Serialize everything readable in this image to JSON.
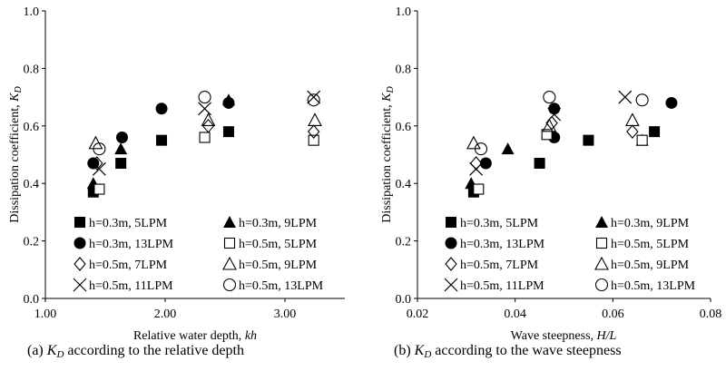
{
  "chart_data": [
    {
      "type": "scatter",
      "caption_prefix": "(a)",
      "caption_k": "K",
      "caption_sub": "D",
      "caption_rest": "according to the relative depth",
      "xlabel": "Relative water depth, ",
      "xlabel_italic": "kh",
      "ylabel": "Dissipation coefficient, ",
      "ylabel_k": "K",
      "ylabel_sub": "D",
      "xlim": [
        1.0,
        3.5
      ],
      "ylim": [
        0.0,
        1.0
      ],
      "xticks": [
        "1.00",
        "2.00",
        "3.00"
      ],
      "xtick_values": [
        1.0,
        2.0,
        3.0
      ],
      "yticks": [
        "0.0",
        "0.2",
        "0.4",
        "0.6",
        "0.8",
        "1.0"
      ],
      "ytick_values": [
        0.0,
        0.2,
        0.4,
        0.6,
        0.8,
        1.0
      ],
      "grid": false,
      "legend_position": "bottom-right",
      "series": [
        {
          "name": "h=0.3m, 5LPM",
          "marker": "square-filled",
          "points": [
            [
              1.4,
              0.37
            ],
            [
              1.63,
              0.47
            ],
            [
              1.97,
              0.55
            ],
            [
              2.53,
              0.58
            ]
          ]
        },
        {
          "name": "h=0.3m, 9LPM",
          "marker": "triangle-filled",
          "points": [
            [
              1.4,
              0.4
            ],
            [
              1.63,
              0.52
            ],
            [
              2.53,
              0.69
            ]
          ]
        },
        {
          "name": "h=0.3m, 13LPM",
          "marker": "circle-filled",
          "points": [
            [
              1.4,
              0.47
            ],
            [
              1.64,
              0.56
            ],
            [
              1.97,
              0.66
            ],
            [
              2.53,
              0.68
            ]
          ]
        },
        {
          "name": "h=0.5m, 5LPM",
          "marker": "square-open",
          "points": [
            [
              1.45,
              0.38
            ],
            [
              2.33,
              0.56
            ],
            [
              3.24,
              0.55
            ]
          ]
        },
        {
          "name": "h=0.5m, 7LPM",
          "marker": "diamond-open",
          "points": [
            [
              1.43,
              0.47
            ],
            [
              2.36,
              0.6
            ],
            [
              3.24,
              0.58
            ]
          ]
        },
        {
          "name": "h=0.5m, 9LPM",
          "marker": "triangle-open",
          "points": [
            [
              1.42,
              0.54
            ],
            [
              2.36,
              0.62
            ],
            [
              3.25,
              0.62
            ]
          ]
        },
        {
          "name": "h=0.5m, 11LPM",
          "marker": "x",
          "points": [
            [
              1.45,
              0.45
            ],
            [
              2.33,
              0.66
            ],
            [
              3.24,
              0.7
            ]
          ]
        },
        {
          "name": "h=0.5m, 13LPM",
          "marker": "circle-open",
          "points": [
            [
              1.45,
              0.52
            ],
            [
              2.33,
              0.7
            ],
            [
              3.24,
              0.69
            ]
          ]
        }
      ]
    },
    {
      "type": "scatter",
      "caption_prefix": "(b)",
      "caption_k": "K",
      "caption_sub": "D",
      "caption_rest": "according to the wave steepness",
      "xlabel": "Wave steepness, ",
      "xlabel_italic": "H/L",
      "ylabel": "Dissipation coefficient, ",
      "ylabel_k": "K",
      "ylabel_sub": "D",
      "xlim": [
        0.02,
        0.08
      ],
      "ylim": [
        0.0,
        1.0
      ],
      "xticks": [
        "0.02",
        "0.04",
        "0.06",
        "0.08"
      ],
      "xtick_values": [
        0.02,
        0.04,
        0.06,
        0.08
      ],
      "yticks": [
        "0.0",
        "0.2",
        "0.4",
        "0.6",
        "0.8",
        "1.0"
      ],
      "ytick_values": [
        0.0,
        0.2,
        0.4,
        0.6,
        0.8,
        1.0
      ],
      "grid": false,
      "legend_position": "bottom-right",
      "series": [
        {
          "name": "h=0.3m, 5LPM",
          "marker": "square-filled",
          "points": [
            [
              0.0315,
              0.37
            ],
            [
              0.045,
              0.47
            ],
            [
              0.055,
              0.55
            ],
            [
              0.0685,
              0.58
            ]
          ]
        },
        {
          "name": "h=0.3m, 9LPM",
          "marker": "triangle-filled",
          "points": [
            [
              0.031,
              0.4
            ],
            [
              0.0385,
              0.52
            ],
            [
              0.066,
              0.55
            ]
          ]
        },
        {
          "name": "h=0.3m, 13LPM",
          "marker": "circle-filled",
          "points": [
            [
              0.034,
              0.47
            ],
            [
              0.048,
              0.56
            ],
            [
              0.048,
              0.66
            ],
            [
              0.072,
              0.68
            ]
          ]
        },
        {
          "name": "h=0.5m, 5LPM",
          "marker": "square-open",
          "points": [
            [
              0.0325,
              0.38
            ],
            [
              0.0465,
              0.57
            ],
            [
              0.066,
              0.55
            ]
          ]
        },
        {
          "name": "h=0.5m, 7LPM",
          "marker": "diamond-open",
          "points": [
            [
              0.032,
              0.47
            ],
            [
              0.0475,
              0.61
            ],
            [
              0.064,
              0.58
            ]
          ]
        },
        {
          "name": "h=0.5m, 9LPM",
          "marker": "triangle-open",
          "points": [
            [
              0.0315,
              0.54
            ],
            [
              0.047,
              0.6
            ],
            [
              0.064,
              0.62
            ]
          ]
        },
        {
          "name": "h=0.5m, 11LPM",
          "marker": "x",
          "points": [
            [
              0.032,
              0.45
            ],
            [
              0.048,
              0.64
            ],
            [
              0.0625,
              0.7
            ]
          ]
        },
        {
          "name": "h=0.5m, 13LPM",
          "marker": "circle-open",
          "points": [
            [
              0.033,
              0.52
            ],
            [
              0.047,
              0.7
            ],
            [
              0.066,
              0.69
            ]
          ]
        }
      ]
    }
  ]
}
